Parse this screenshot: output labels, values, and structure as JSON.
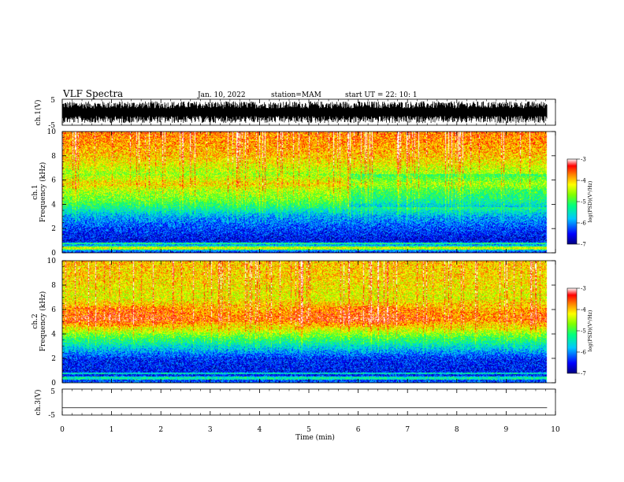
{
  "header": {
    "title": "VLF Spectra",
    "date": "Jan. 10, 2022",
    "station": "station=MAM",
    "start": "start UT =   22: 10: 1"
  },
  "chart_data": {
    "type": "heatmap",
    "x_axis": {
      "label": "Time (min)",
      "range": [
        0,
        10
      ],
      "ticks": [
        0,
        1,
        2,
        3,
        4,
        5,
        6,
        7,
        8,
        9,
        10
      ],
      "data_end": 9.83
    },
    "panels": [
      {
        "kind": "waveform",
        "ylabel": "ch.1(V)",
        "ylim": [
          -5,
          5
        ],
        "yticks": [
          -5,
          5
        ],
        "amplitude_range": [
          -4.2,
          4.2
        ]
      },
      {
        "kind": "spectrogram",
        "ylabel_top": "ch.1",
        "ylabel": "Frequency (kHz)",
        "ylim": [
          0,
          10
        ],
        "yticks": [
          0,
          2,
          4,
          6,
          8,
          10
        ],
        "colorbar": {
          "label": "log(PSD)(V²/Hz)",
          "range": [
            -7,
            -3
          ],
          "ticks": [
            -3,
            -4,
            -5,
            -6,
            -7
          ]
        },
        "mean_log_psd_profile": [
          {
            "f": 0,
            "v": -6.7
          },
          {
            "f": 0.4,
            "v": -5.2
          },
          {
            "f": 1,
            "v": -6.6
          },
          {
            "f": 2,
            "v": -6.3
          },
          {
            "f": 3,
            "v": -5.9
          },
          {
            "f": 3.7,
            "v": -5.3
          },
          {
            "f": 4.4,
            "v": -4.8
          },
          {
            "f": 5.2,
            "v": -4.5
          },
          {
            "f": 5.7,
            "v": -4.1
          },
          {
            "f": 6.5,
            "v": -4.6
          },
          {
            "f": 8,
            "v": -4.0
          },
          {
            "f": 10,
            "v": -3.7
          }
        ],
        "notes": "green band ~4-6 kHz strengthening after t≈6 min"
      },
      {
        "kind": "spectrogram",
        "ylabel_top": "ch.2",
        "ylabel": "Frequency (kHz)",
        "ylim": [
          0,
          10
        ],
        "yticks": [
          0,
          2,
          4,
          6,
          8,
          10
        ],
        "colorbar": {
          "label": "log(PSD)(V²/Hz)",
          "range": [
            -7,
            -3
          ],
          "ticks": [
            -3,
            -4,
            -5,
            -6,
            -7
          ]
        },
        "mean_log_psd_profile": [
          {
            "f": 0,
            "v": -6.2
          },
          {
            "f": 1,
            "v": -6.5
          },
          {
            "f": 2,
            "v": -6.4
          },
          {
            "f": 3,
            "v": -5.6
          },
          {
            "f": 3.8,
            "v": -4.9
          },
          {
            "f": 4.5,
            "v": -4.2
          },
          {
            "f": 5.2,
            "v": -3.6
          },
          {
            "f": 6,
            "v": -3.8
          },
          {
            "f": 7,
            "v": -4.3
          },
          {
            "f": 8.5,
            "v": -4.1
          },
          {
            "f": 10,
            "v": -4.0
          }
        ],
        "notes": "strong red band ~4.5-6.5 kHz across the record"
      },
      {
        "kind": "waveform",
        "ylabel": "ch.3(V)",
        "ylim": [
          -5,
          5
        ],
        "yticks": [
          -5,
          5
        ],
        "constant_value": -2.2
      }
    ]
  }
}
